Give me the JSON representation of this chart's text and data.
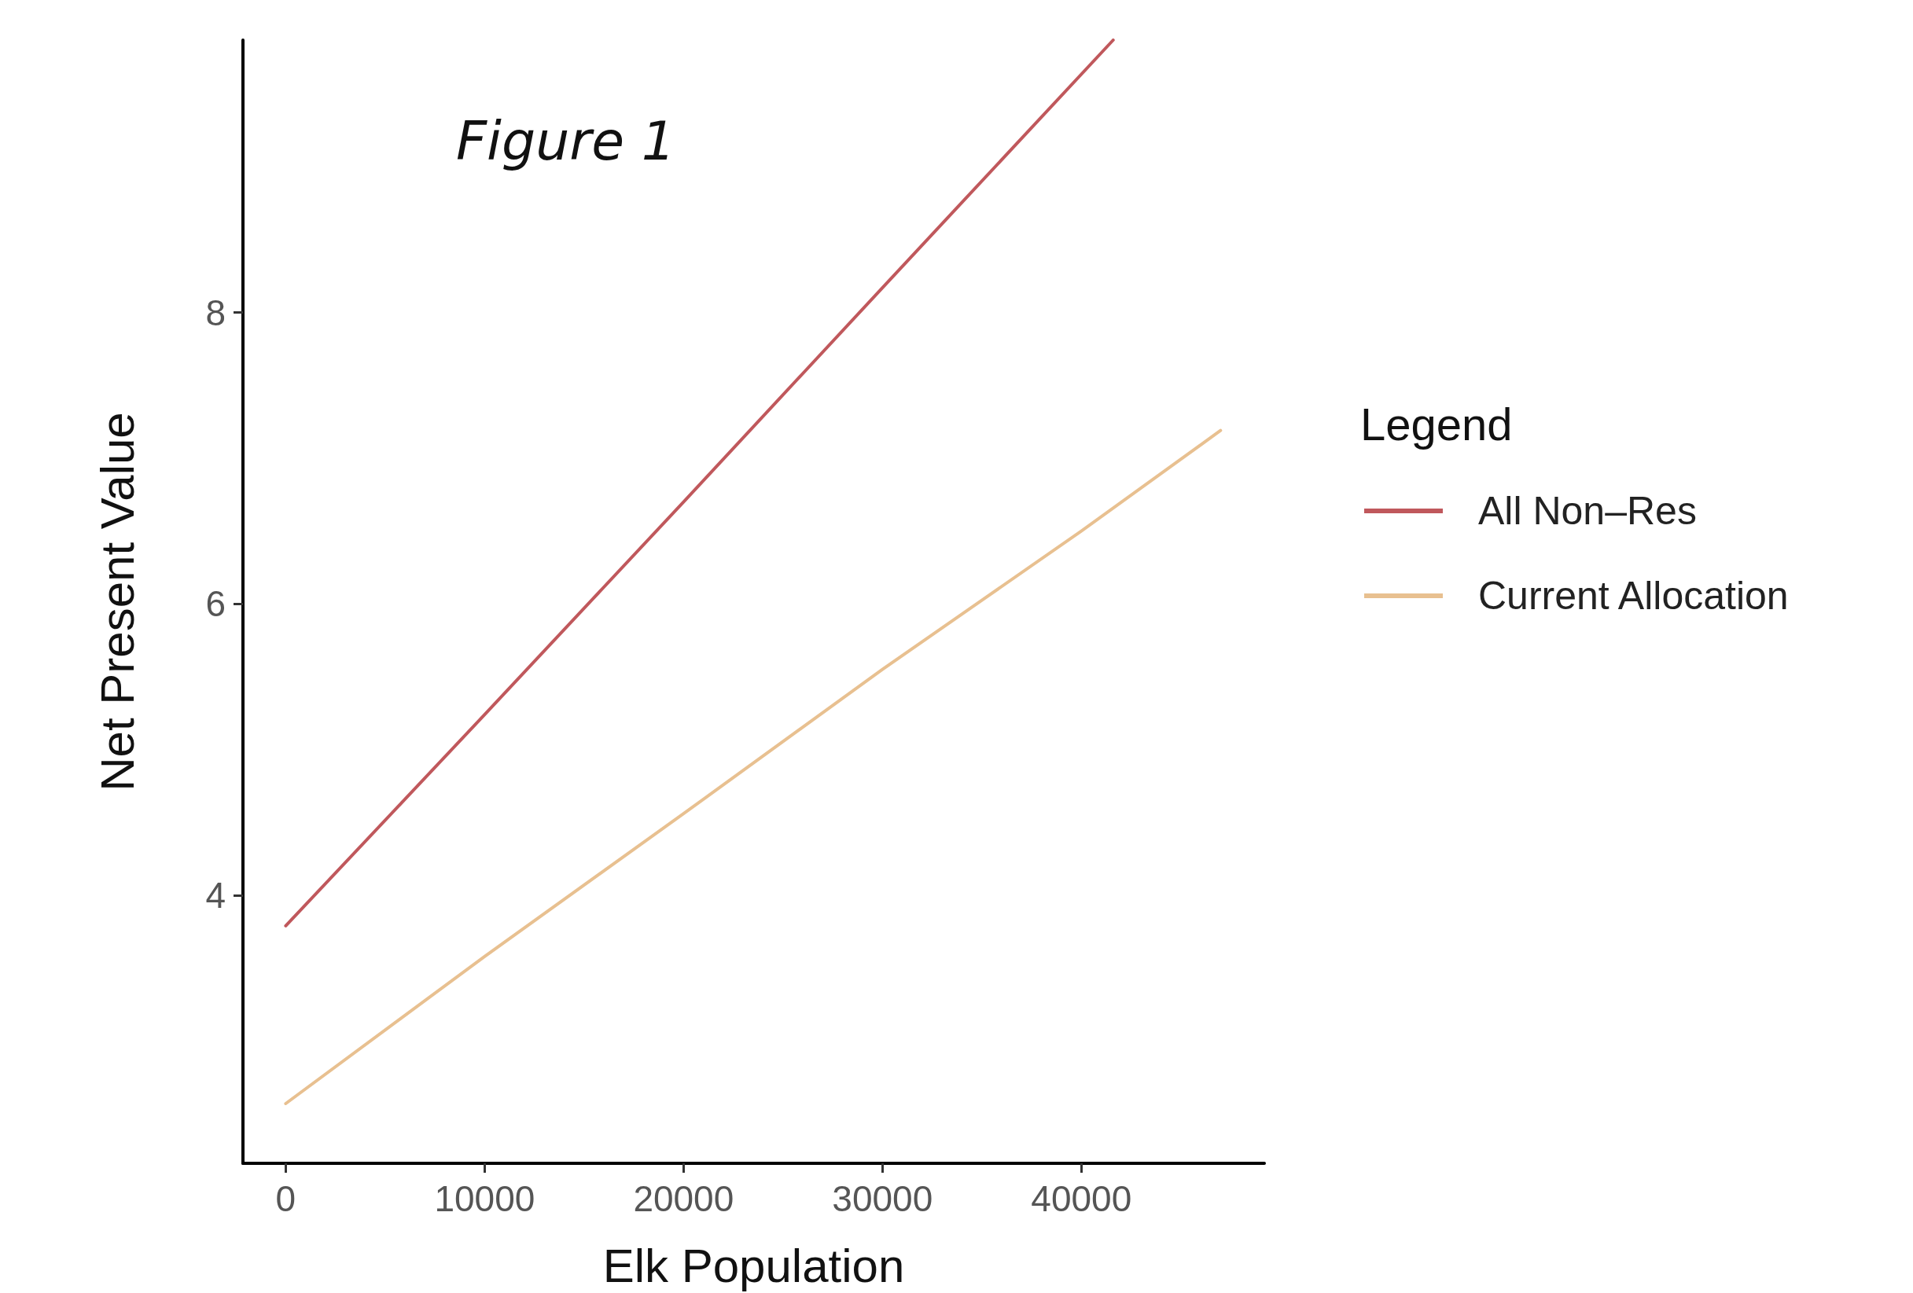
{
  "chart_data": {
    "type": "line",
    "title": "Figure 1",
    "xlabel": "Elk Population",
    "ylabel": "Net Present Value",
    "legend_title": "Legend",
    "xlim": [
      -2150,
      49200
    ],
    "xticks": [
      0,
      10000,
      20000,
      30000,
      40000
    ],
    "ylim": [
      2.16,
      9.87
    ],
    "yticks": [
      4,
      6,
      8
    ],
    "grid": false,
    "legend": "right",
    "marker": "none",
    "line_style": "solid",
    "series": [
      {
        "name": "All Non–Res",
        "color": "#c0585c",
        "x": [
          0,
          10000,
          20000,
          30000,
          41600
        ],
        "values": [
          3.79,
          5.24,
          6.7,
          8.17,
          9.87
        ]
      },
      {
        "name": "Current Allocation",
        "color": "#e8c090",
        "x": [
          0,
          10000,
          20000,
          30000,
          40000,
          47000
        ],
        "values": [
          2.57,
          3.58,
          4.56,
          5.55,
          6.5,
          7.19
        ]
      }
    ]
  }
}
